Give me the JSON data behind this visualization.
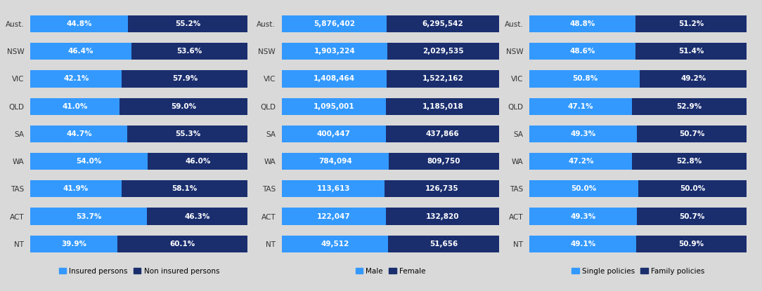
{
  "states": [
    "Aust.",
    "NSW",
    "VIC",
    "QLD",
    "SA",
    "WA",
    "TAS",
    "ACT",
    "NT"
  ],
  "background_color": "#d9d9d9",
  "chart1": {
    "col1_label": "Insured persons",
    "col2_label": "Non insured persons",
    "col1_color": "#3399ff",
    "col2_color": "#1a2e6e",
    "values1": [
      44.8,
      46.4,
      42.1,
      41.0,
      44.7,
      54.0,
      41.9,
      53.7,
      39.9
    ],
    "values2": [
      55.2,
      53.6,
      57.9,
      59.0,
      55.3,
      46.0,
      58.1,
      46.3,
      60.1
    ],
    "labels1": [
      "44.8%",
      "46.4%",
      "42.1%",
      "41.0%",
      "44.7%",
      "54.0%",
      "41.9%",
      "53.7%",
      "39.9%"
    ],
    "labels2": [
      "55.2%",
      "53.6%",
      "57.9%",
      "59.0%",
      "55.3%",
      "46.0%",
      "58.1%",
      "46.3%",
      "60.1%"
    ]
  },
  "chart2": {
    "col1_label": "Male",
    "col2_label": "Female",
    "col1_color": "#3399ff",
    "col2_color": "#1a2e6e",
    "values1": [
      5876402,
      1903224,
      1408464,
      1095001,
      400447,
      784094,
      113613,
      122047,
      49512
    ],
    "values2": [
      6295542,
      2029535,
      1522162,
      1185018,
      437866,
      809750,
      126735,
      132820,
      51656
    ],
    "pct1": [
      48.3,
      48.4,
      48.1,
      48.0,
      47.8,
      49.2,
      47.3,
      47.9,
      48.9
    ],
    "pct2": [
      51.7,
      51.6,
      51.9,
      52.0,
      52.2,
      50.8,
      52.7,
      52.1,
      51.1
    ],
    "labels1": [
      "5,876,402",
      "1,903,224",
      "1,408,464",
      "1,095,001",
      "400,447",
      "784,094",
      "113,613",
      "122,047",
      "49,512"
    ],
    "labels2": [
      "6,295,542",
      "2,029,535",
      "1,522,162",
      "1,185,018",
      "437,866",
      "809,750",
      "126,735",
      "132,820",
      "51,656"
    ]
  },
  "chart3": {
    "col1_label": "Single policies",
    "col2_label": "Family policies",
    "col1_color": "#3399ff",
    "col2_color": "#1a2e6e",
    "values1": [
      48.8,
      48.6,
      50.8,
      47.1,
      49.3,
      47.2,
      50.0,
      49.3,
      49.1
    ],
    "values2": [
      51.2,
      51.4,
      49.2,
      52.9,
      50.7,
      52.8,
      50.0,
      50.7,
      50.9
    ],
    "labels1": [
      "48.8%",
      "48.6%",
      "50.8%",
      "47.1%",
      "49.3%",
      "47.2%",
      "50.0%",
      "49.3%",
      "49.1%"
    ],
    "labels2": [
      "51.2%",
      "51.4%",
      "49.2%",
      "52.9%",
      "50.7%",
      "52.8%",
      "50.0%",
      "50.7%",
      "50.9%"
    ]
  },
  "bar_height": 0.62,
  "text_fontsize": 7.5,
  "label_fontsize": 7.5,
  "legend_fontsize": 7.5
}
